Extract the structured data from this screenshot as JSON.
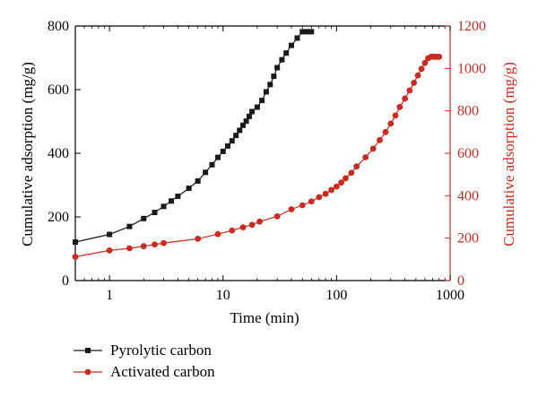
{
  "chart_data": {
    "type": "scatter",
    "xlabel": "Time (min)",
    "ylabel_left": "Cumulative adsorption (mg/g)",
    "ylabel_right": "Cumulative adsorption (mg/g)",
    "x_scale": "log",
    "xlim": [
      0.5,
      1000
    ],
    "ylim_left": [
      0,
      800
    ],
    "ylim_right": [
      0,
      1200
    ],
    "x_ticks": [
      1,
      10,
      100,
      1000
    ],
    "x_tick_labels": [
      "1",
      "10",
      "100",
      "1000"
    ],
    "y_left_ticks": [
      0,
      200,
      400,
      600,
      800
    ],
    "y_left_tick_labels": [
      "0",
      "200",
      "400",
      "600",
      "800"
    ],
    "y_right_ticks": [
      0,
      200,
      400,
      600,
      800,
      1000,
      1200
    ],
    "y_right_tick_labels": [
      "0",
      "200",
      "400",
      "600",
      "800",
      "1000",
      "1200"
    ],
    "grid": false,
    "legend_position": "bottom-left",
    "left_axis_color": "#000000",
    "right_axis_color": "#cc2a1f",
    "series": [
      {
        "name": "Pyrolytic carbon",
        "axis": "left",
        "color": "#1a1a1a",
        "marker": "square",
        "x": [
          0.5,
          1,
          1.5,
          2,
          2.5,
          3,
          3.5,
          4,
          5,
          6,
          7,
          8,
          9,
          10,
          11,
          12,
          13,
          14,
          15,
          16,
          17,
          18,
          20,
          22,
          24,
          26,
          28,
          30,
          33,
          36,
          40,
          45,
          50,
          55,
          60
        ],
        "y": [
          121,
          145,
          170,
          195,
          214,
          233,
          250,
          265,
          290,
          313,
          340,
          364,
          387,
          406,
          423,
          439,
          456,
          472,
          488,
          501,
          516,
          531,
          545,
          566,
          593,
          616,
          642,
          669,
          694,
          715,
          739,
          762,
          782,
          782,
          782
        ]
      },
      {
        "name": "Activated carbon",
        "axis": "right",
        "color": "#cc2a1f",
        "marker": "circle",
        "x": [
          0.5,
          1,
          1.5,
          2,
          2.5,
          3,
          6,
          9,
          12,
          15,
          18,
          21,
          30,
          40,
          50,
          60,
          70,
          80,
          90,
          100,
          110,
          120,
          135,
          150,
          180,
          210,
          240,
          270,
          300,
          330,
          360,
          400,
          440,
          480,
          520,
          560,
          600,
          640,
          680,
          720,
          760,
          800
        ],
        "y": [
          112,
          142,
          152,
          162,
          170,
          177,
          197,
          219,
          236,
          251,
          263,
          278,
          303,
          336,
          355,
          373,
          393,
          409,
          427,
          443,
          462,
          482,
          508,
          538,
          581,
          622,
          662,
          700,
          740,
          778,
          818,
          858,
          896,
          932,
          967,
          998,
          1026,
          1048,
          1055,
          1055,
          1055,
          1055
        ]
      }
    ]
  }
}
